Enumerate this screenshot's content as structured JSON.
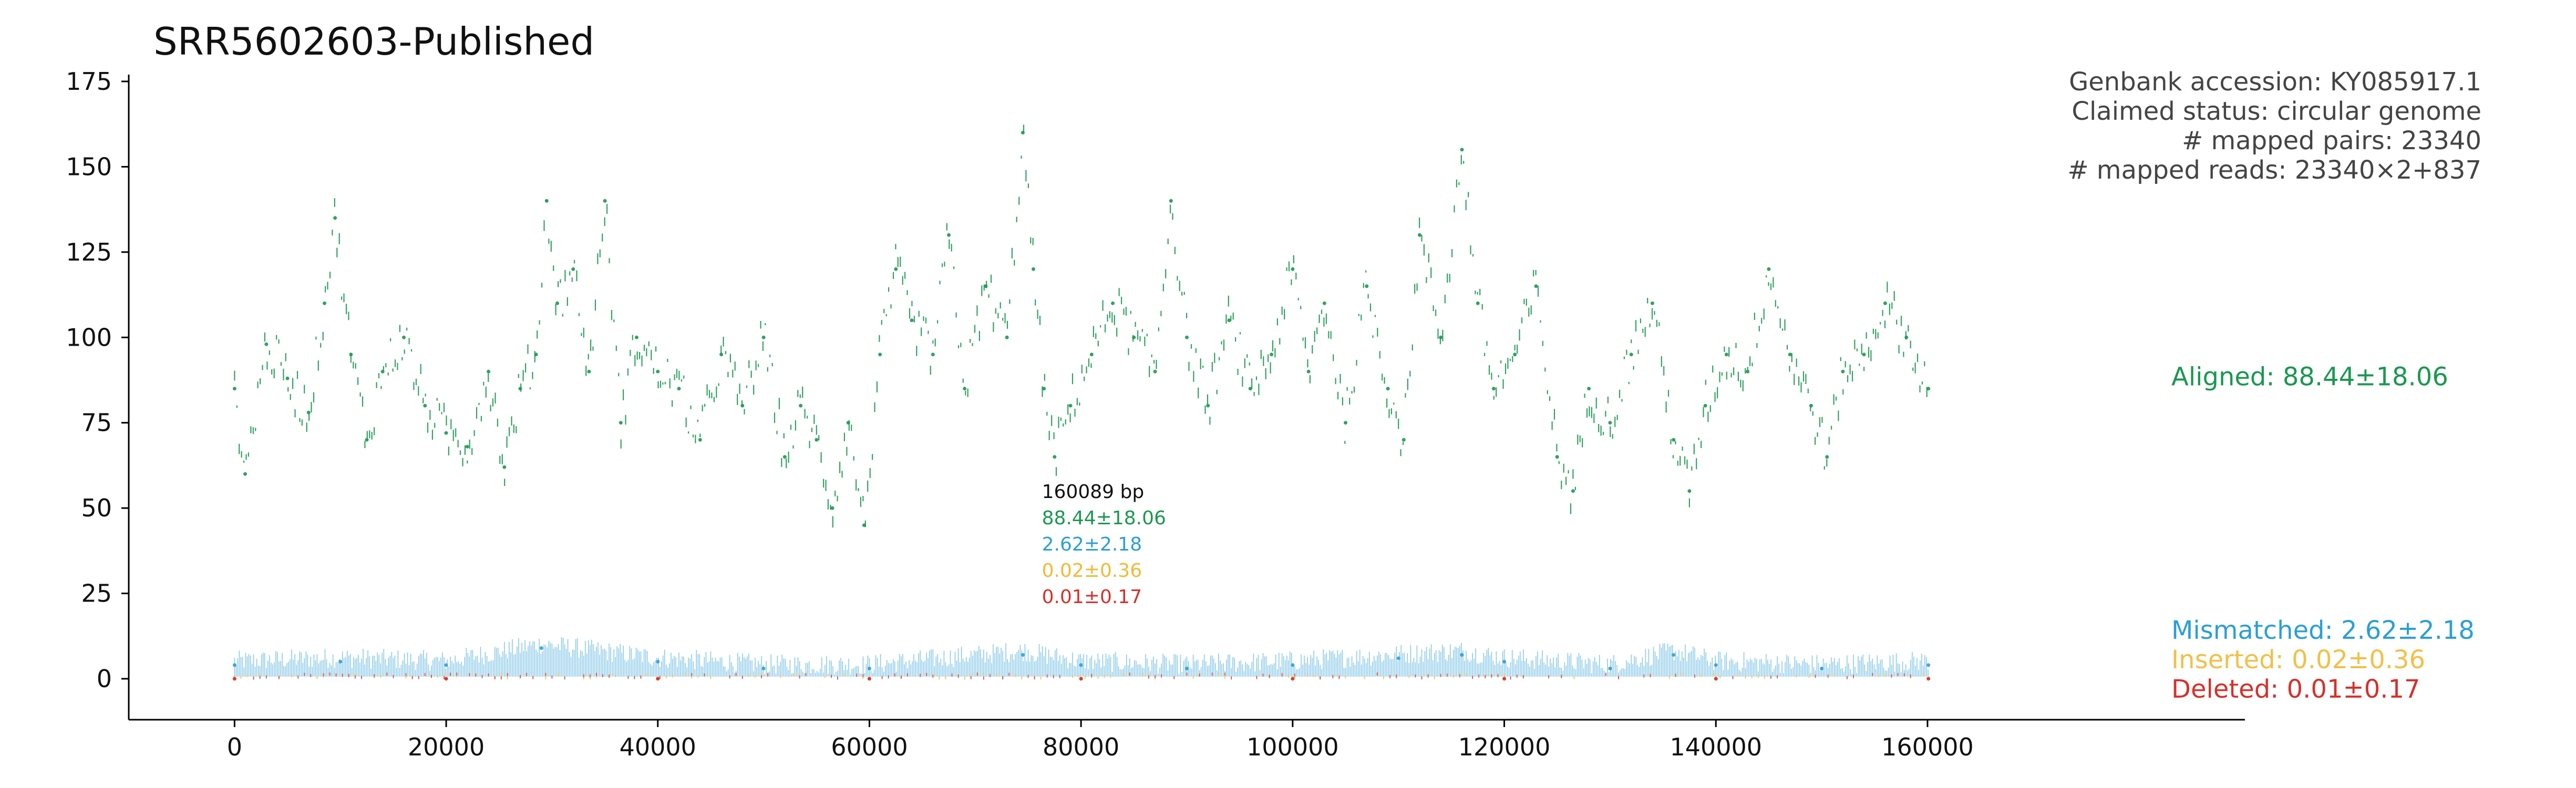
{
  "chart_data": {
    "type": "scatter",
    "title": "SRR5602603-Published",
    "xlabel": "",
    "ylabel": "",
    "xlim": [
      -10000,
      190000
    ],
    "ylim": [
      -12,
      177
    ],
    "x_ticks": [
      0,
      20000,
      40000,
      60000,
      80000,
      100000,
      120000,
      140000,
      160000
    ],
    "y_ticks": [
      0,
      25,
      50,
      75,
      100,
      125,
      150,
      175
    ],
    "info_lines": [
      "Genbank accession: KY085917.1",
      "Claimed status: circular genome",
      "# mapped pairs: 23340",
      "# mapped reads: 23340×2+837"
    ],
    "genome_length_label": "160089 bp",
    "summary_values": [
      {
        "text": "88.44±18.06",
        "color": "#1a9850"
      },
      {
        "text": "2.62±2.18",
        "color": "#2b9fd6"
      },
      {
        "text": "0.02±0.36",
        "color": "#f2b935"
      },
      {
        "text": "0.01±0.17",
        "color": "#d7302a"
      }
    ],
    "series": [
      {
        "name": "Aligned: 88.44±18.06",
        "color": "#1a9850",
        "x": [
          0,
          1000,
          3000,
          5000,
          7000,
          8500,
          9500,
          11000,
          12500,
          14000,
          16000,
          18000,
          20000,
          22000,
          24000,
          25500,
          27000,
          28500,
          29500,
          30500,
          32000,
          33500,
          35000,
          36500,
          38000,
          40000,
          42000,
          44000,
          46000,
          48000,
          50000,
          52000,
          53500,
          55000,
          56500,
          58000,
          59500,
          61000,
          62500,
          64000,
          66000,
          67500,
          69000,
          71000,
          73000,
          74500,
          75500,
          76500,
          77500,
          79000,
          81000,
          83000,
          85000,
          87000,
          88500,
          90000,
          92000,
          94000,
          96000,
          98000,
          100000,
          101500,
          103000,
          105000,
          107000,
          109000,
          110500,
          112000,
          114000,
          116000,
          117500,
          119000,
          121000,
          123000,
          125000,
          126500,
          128000,
          130000,
          132000,
          134000,
          136000,
          137500,
          139000,
          141000,
          143000,
          145000,
          147000,
          149000,
          150500,
          152000,
          154000,
          156000,
          158000,
          160089
        ],
        "values": [
          85,
          60,
          98,
          88,
          78,
          110,
          135,
          95,
          70,
          90,
          100,
          80,
          72,
          68,
          90,
          62,
          85,
          95,
          140,
          110,
          120,
          90,
          140,
          75,
          100,
          90,
          85,
          70,
          95,
          80,
          100,
          65,
          80,
          70,
          50,
          75,
          45,
          95,
          120,
          105,
          95,
          130,
          85,
          115,
          100,
          160,
          120,
          85,
          65,
          80,
          95,
          110,
          100,
          90,
          140,
          100,
          80,
          105,
          85,
          95,
          120,
          90,
          110,
          75,
          115,
          85,
          70,
          130,
          100,
          155,
          110,
          85,
          95,
          115,
          65,
          55,
          85,
          75,
          95,
          110,
          70,
          55,
          80,
          95,
          90,
          120,
          95,
          80,
          65,
          90,
          95,
          110,
          100,
          85
        ]
      },
      {
        "name": "Mismatched: 2.62±2.18",
        "color": "#2b9fd6",
        "x": [
          0,
          10000,
          20000,
          29000,
          40000,
          50000,
          60000,
          74500,
          80000,
          90000,
          100000,
          110000,
          116000,
          120000,
          130000,
          136000,
          140000,
          150000,
          160089
        ],
        "values": [
          4,
          5,
          4,
          9,
          5,
          3,
          3,
          7,
          4,
          3,
          4,
          6,
          7,
          5,
          3,
          7,
          4,
          3,
          4
        ]
      },
      {
        "name": "Inserted: 0.02±0.36",
        "color": "#f2b935",
        "x": [
          0,
          20000,
          40000,
          60000,
          80000,
          100000,
          120000,
          140000,
          160089
        ],
        "values": [
          0.02,
          0.03,
          0.01,
          0.02,
          0.02,
          0.03,
          0.01,
          0.02,
          0.02
        ]
      },
      {
        "name": "Deleted: 0.01±0.17",
        "color": "#d7302a",
        "x": [
          0,
          20000,
          40000,
          60000,
          80000,
          100000,
          120000,
          140000,
          160089
        ],
        "values": [
          0.01,
          0.01,
          0.02,
          0.01,
          0.01,
          0.01,
          0.02,
          0.01,
          0.01
        ]
      }
    ],
    "grid": false,
    "legend": "right"
  }
}
